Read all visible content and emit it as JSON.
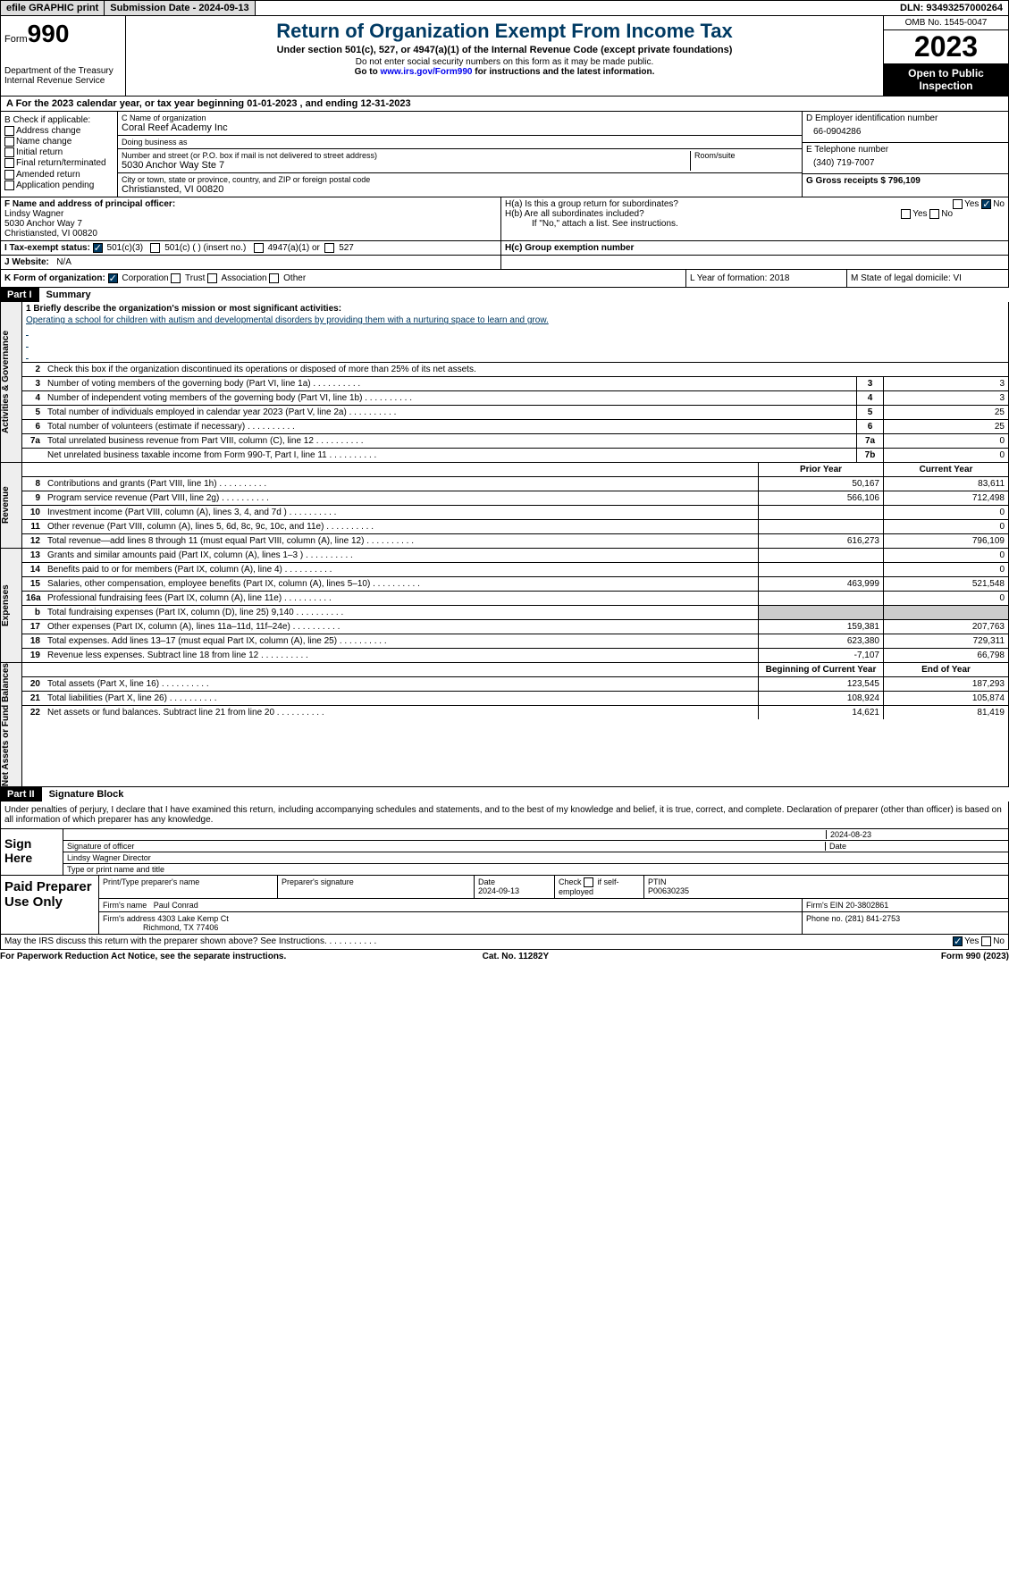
{
  "topbar": {
    "efile": "efile GRAPHIC print",
    "sub_lbl": "Submission Date - 2024-09-13",
    "dln": "DLN: 93493257000264"
  },
  "header": {
    "form_word": "Form",
    "form_no": "990",
    "dept": "Department of the Treasury\nInternal Revenue Service",
    "title": "Return of Organization Exempt From Income Tax",
    "sub": "Under section 501(c), 527, or 4947(a)(1) of the Internal Revenue Code (except private foundations)",
    "note1": "Do not enter social security numbers on this form as it may be made public.",
    "note2_a": "Go to ",
    "note2_link": "www.irs.gov/Form990",
    "note2_b": " for instructions and the latest information.",
    "omb": "OMB No. 1545-0047",
    "year": "2023",
    "open": "Open to Public Inspection"
  },
  "rowA": "A  For the 2023 calendar year, or tax year beginning 01-01-2023   , and ending 12-31-2023",
  "B": {
    "lbl": "B Check if applicable:",
    "opts": [
      "Address change",
      "Name change",
      "Initial return",
      "Final return/terminated",
      "Amended return",
      "Application pending"
    ]
  },
  "C": {
    "name_lbl": "C Name of organization",
    "name": "Coral Reef Academy Inc",
    "dba_lbl": "Doing business as",
    "dba": "",
    "addr_lbl": "Number and street (or P.O. box if mail is not delivered to street address)",
    "addr": "5030 Anchor Way Ste 7",
    "room_lbl": "Room/suite",
    "city_lbl": "City or town, state or province, country, and ZIP or foreign postal code",
    "city": "Christiansted, VI  00820"
  },
  "D": {
    "lbl": "D Employer identification number",
    "val": "66-0904286"
  },
  "E": {
    "lbl": "E Telephone number",
    "val": "(340) 719-7007"
  },
  "G": {
    "lbl": "G Gross receipts $ 796,109"
  },
  "F": {
    "lbl": "F  Name and address of principal officer:",
    "name": "Lindsy Wagner",
    "addr1": "5030 Anchor Way 7",
    "addr2": "Christiansted, VI  00820"
  },
  "H": {
    "a": "H(a)  Is this a group return for subordinates?",
    "b": "H(b)  Are all subordinates included?",
    "b_note": "If \"No,\" attach a list. See instructions.",
    "c": "H(c)  Group exemption number",
    "yes": "Yes",
    "no": "No"
  },
  "I": {
    "lbl": "I  Tax-exempt status:",
    "o1": "501(c)(3)",
    "o2": "501(c) (  ) (insert no.)",
    "o3": "4947(a)(1) or",
    "o4": "527"
  },
  "J": {
    "lbl": "J  Website:",
    "val": "N/A"
  },
  "K": {
    "lbl": "K Form of organization:",
    "o1": "Corporation",
    "o2": "Trust",
    "o3": "Association",
    "o4": "Other"
  },
  "L": "L Year of formation: 2018",
  "M": "M State of legal domicile: VI",
  "part1": {
    "num": "Part I",
    "title": "Summary"
  },
  "part2": {
    "num": "Part II",
    "title": "Signature Block"
  },
  "tabs": {
    "ag": "Activities & Governance",
    "rev": "Revenue",
    "exp": "Expenses",
    "na": "Net Assets or Fund Balances"
  },
  "s1": {
    "lbl": "1  Briefly describe the organization's mission or most significant activities:",
    "val": "Operating a school for children with autism and developmental disorders by providing them with a nurturing space to learn and grow."
  },
  "s2": "Check this box      if the organization discontinued its operations or disposed of more than 25% of its net assets.",
  "lines_gov": [
    {
      "n": "3",
      "t": "Number of voting members of the governing body (Part VI, line 1a)",
      "bn": "3",
      "v": "3"
    },
    {
      "n": "4",
      "t": "Number of independent voting members of the governing body (Part VI, line 1b)",
      "bn": "4",
      "v": "3"
    },
    {
      "n": "5",
      "t": "Total number of individuals employed in calendar year 2023 (Part V, line 2a)",
      "bn": "5",
      "v": "25"
    },
    {
      "n": "6",
      "t": "Total number of volunteers (estimate if necessary)",
      "bn": "6",
      "v": "25"
    },
    {
      "n": "7a",
      "t": "Total unrelated business revenue from Part VIII, column (C), line 12",
      "bn": "7a",
      "v": "0"
    },
    {
      "n": "",
      "t": "Net unrelated business taxable income from Form 990-T, Part I, line 11",
      "bn": "7b",
      "v": "0"
    }
  ],
  "col_prior": "Prior Year",
  "col_curr": "Current Year",
  "lines_rev": [
    {
      "n": "8",
      "t": "Contributions and grants (Part VIII, line 1h)",
      "p": "50,167",
      "c": "83,611"
    },
    {
      "n": "9",
      "t": "Program service revenue (Part VIII, line 2g)",
      "p": "566,106",
      "c": "712,498"
    },
    {
      "n": "10",
      "t": "Investment income (Part VIII, column (A), lines 3, 4, and 7d )",
      "p": "",
      "c": "0"
    },
    {
      "n": "11",
      "t": "Other revenue (Part VIII, column (A), lines 5, 6d, 8c, 9c, 10c, and 11e)",
      "p": "",
      "c": "0"
    },
    {
      "n": "12",
      "t": "Total revenue—add lines 8 through 11 (must equal Part VIII, column (A), line 12)",
      "p": "616,273",
      "c": "796,109"
    }
  ],
  "lines_exp": [
    {
      "n": "13",
      "t": "Grants and similar amounts paid (Part IX, column (A), lines 1–3 )",
      "p": "",
      "c": "0"
    },
    {
      "n": "14",
      "t": "Benefits paid to or for members (Part IX, column (A), line 4)",
      "p": "",
      "c": "0"
    },
    {
      "n": "15",
      "t": "Salaries, other compensation, employee benefits (Part IX, column (A), lines 5–10)",
      "p": "463,999",
      "c": "521,548"
    },
    {
      "n": "16a",
      "t": "Professional fundraising fees (Part IX, column (A), line 11e)",
      "p": "",
      "c": "0"
    },
    {
      "n": "b",
      "t": "Total fundraising expenses (Part IX, column (D), line 25) 9,140",
      "p": "GREY",
      "c": "GREY"
    },
    {
      "n": "17",
      "t": "Other expenses (Part IX, column (A), lines 11a–11d, 11f–24e)",
      "p": "159,381",
      "c": "207,763"
    },
    {
      "n": "18",
      "t": "Total expenses. Add lines 13–17 (must equal Part IX, column (A), line 25)",
      "p": "623,380",
      "c": "729,311"
    },
    {
      "n": "19",
      "t": "Revenue less expenses. Subtract line 18 from line 12",
      "p": "-7,107",
      "c": "66,798"
    }
  ],
  "col_begin": "Beginning of Current Year",
  "col_end": "End of Year",
  "lines_na": [
    {
      "n": "20",
      "t": "Total assets (Part X, line 16)",
      "p": "123,545",
      "c": "187,293"
    },
    {
      "n": "21",
      "t": "Total liabilities (Part X, line 26)",
      "p": "108,924",
      "c": "105,874"
    },
    {
      "n": "22",
      "t": "Net assets or fund balances. Subtract line 21 from line 20",
      "p": "14,621",
      "c": "81,419"
    }
  ],
  "sig_decl": "Under penalties of perjury, I declare that I have examined this return, including accompanying schedules and statements, and to the best of my knowledge and belief, it is true, correct, and complete. Declaration of preparer (other than officer) is based on all information of which preparer has any knowledge.",
  "sign": {
    "here": "Sign Here",
    "date": "2024-08-23",
    "sig_lbl": "Signature of officer",
    "date_lbl": "Date",
    "name": "Lindsy Wagner Director",
    "name_lbl": "Type or print name and title"
  },
  "prep": {
    "lbl": "Paid Preparer Use Only",
    "h1": "Print/Type preparer's name",
    "h2": "Preparer's signature",
    "h3": "Date",
    "h3v": "2024-09-13",
    "h4a": "Check",
    "h4b": "if self-employed",
    "h5": "PTIN",
    "h5v": "P00630235",
    "firm_lbl": "Firm's name",
    "firm": "Paul Conrad",
    "ein_lbl": "Firm's EIN",
    "ein": "20-3802861",
    "addr_lbl": "Firm's address",
    "addr1": "4303 Lake Kemp Ct",
    "addr2": "Richmond, TX  77406",
    "phone_lbl": "Phone no.",
    "phone": "(281) 841-2753"
  },
  "discuss": "May the IRS discuss this return with the preparer shown above? See Instructions.",
  "footer": {
    "l": "For Paperwork Reduction Act Notice, see the separate instructions.",
    "m": "Cat. No. 11282Y",
    "r": "Form 990 (2023)"
  }
}
